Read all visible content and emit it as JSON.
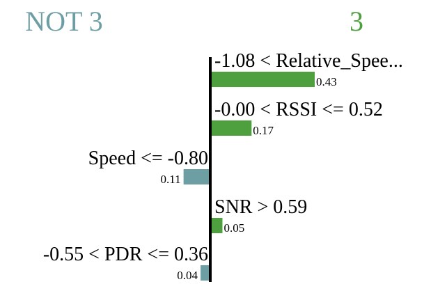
{
  "chart_data": {
    "type": "bar",
    "orientation": "horizontal",
    "negative_class": "NOT 3",
    "positive_class": "3",
    "categories": [
      "-1.08 < Relative_Spee...",
      "-0.00 < RSSI <= 0.52",
      "Speed <= -0.80",
      "SNR > 0.59",
      "-0.55 < PDR <= 0.36"
    ],
    "values": [
      0.43,
      -0.11,
      0.17,
      0.05,
      -0.04
    ],
    "value_labels": [
      "0.43",
      "0.11",
      "0.17",
      "0.05",
      "0.04"
    ],
    "colors": {
      "positive": "#4e9f3d",
      "negative": "#6c9ea3"
    },
    "xlim": [
      -0.43,
      0.43
    ],
    "grid": false
  }
}
